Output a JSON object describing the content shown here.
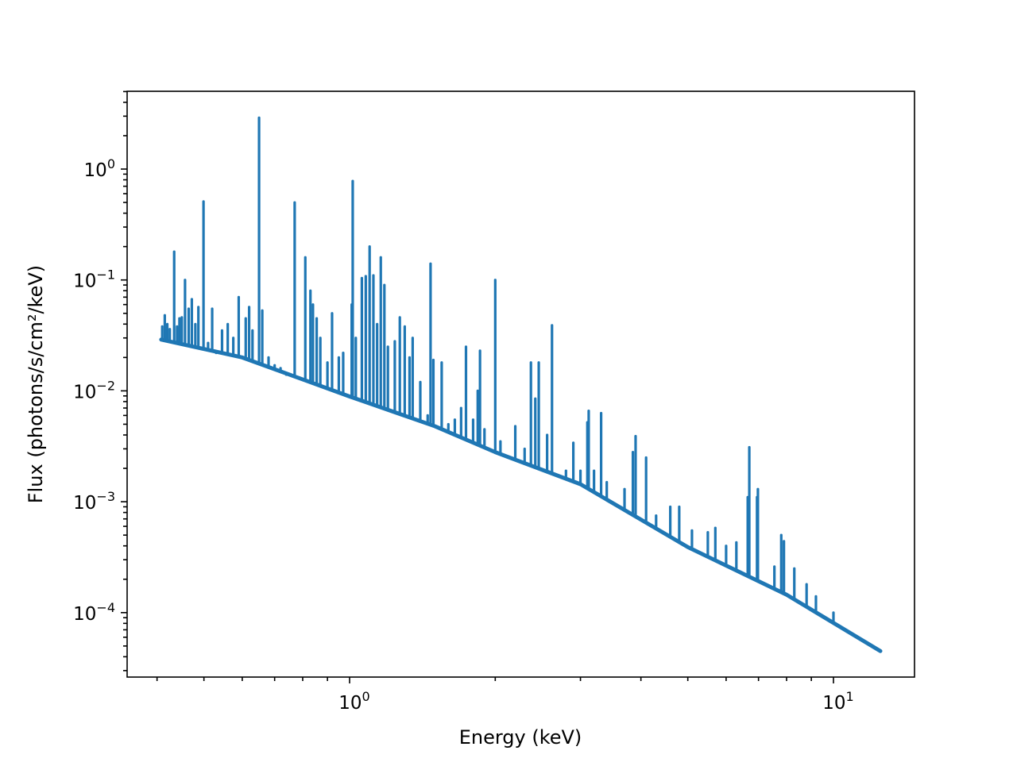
{
  "chart_data": {
    "type": "line",
    "title": "",
    "xlabel": "Energy (keV)",
    "ylabel": "Flux (photons/s/cm²/keV)",
    "xscale": "log",
    "yscale": "log",
    "xlim": [
      0.347,
      14.7
    ],
    "ylim": [
      2.6e-05,
      5.0
    ],
    "grid": false,
    "color": "#1f77b4",
    "x_ticks": [
      {
        "value": 1,
        "base": "10",
        "exp": "0"
      },
      {
        "value": 10,
        "base": "10",
        "exp": "1"
      }
    ],
    "y_ticks": [
      {
        "value": 1,
        "base": "10",
        "exp": "0"
      },
      {
        "value": 0.1,
        "base": "10",
        "exp": "−1"
      },
      {
        "value": 0.01,
        "base": "10",
        "exp": "−2"
      },
      {
        "value": 0.001,
        "base": "10",
        "exp": "−3"
      },
      {
        "value": 0.0001,
        "base": "10",
        "exp": "−4"
      }
    ],
    "continuum": [
      [
        0.408,
        0.029
      ],
      [
        0.6,
        0.02
      ],
      [
        1.0,
        0.0089
      ],
      [
        1.5,
        0.0048
      ],
      [
        2.0,
        0.0028
      ],
      [
        3.0,
        0.00144
      ],
      [
        5.0,
        0.00039
      ],
      [
        8.0,
        0.000145
      ],
      [
        12.5,
        4.5e-05
      ]
    ],
    "lines": [
      [
        0.41,
        0.038
      ],
      [
        0.415,
        0.048
      ],
      [
        0.42,
        0.04
      ],
      [
        0.425,
        0.036
      ],
      [
        0.434,
        0.18
      ],
      [
        0.44,
        0.038
      ],
      [
        0.445,
        0.045
      ],
      [
        0.45,
        0.046
      ],
      [
        0.457,
        0.1
      ],
      [
        0.465,
        0.055
      ],
      [
        0.472,
        0.067
      ],
      [
        0.48,
        0.04
      ],
      [
        0.487,
        0.057
      ],
      [
        0.499,
        0.51
      ],
      [
        0.51,
        0.027
      ],
      [
        0.52,
        0.055
      ],
      [
        0.53,
        0.022
      ],
      [
        0.545,
        0.035
      ],
      [
        0.56,
        0.04
      ],
      [
        0.575,
        0.03
      ],
      [
        0.59,
        0.07
      ],
      [
        0.61,
        0.045
      ],
      [
        0.62,
        0.057
      ],
      [
        0.63,
        0.035
      ],
      [
        0.65,
        2.9
      ],
      [
        0.66,
        0.053
      ],
      [
        0.68,
        0.02
      ],
      [
        0.7,
        0.017
      ],
      [
        0.72,
        0.016
      ],
      [
        0.74,
        0.014
      ],
      [
        0.77,
        0.5
      ],
      [
        0.79,
        0.013
      ],
      [
        0.81,
        0.16
      ],
      [
        0.83,
        0.08
      ],
      [
        0.84,
        0.06
      ],
      [
        0.855,
        0.045
      ],
      [
        0.87,
        0.03
      ],
      [
        0.9,
        0.018
      ],
      [
        0.92,
        0.05
      ],
      [
        0.95,
        0.02
      ],
      [
        0.97,
        0.022
      ],
      [
        1.01,
        0.06
      ],
      [
        1.015,
        0.78
      ],
      [
        1.03,
        0.03
      ],
      [
        1.06,
        0.104
      ],
      [
        1.08,
        0.108
      ],
      [
        1.1,
        0.2
      ],
      [
        1.12,
        0.11
      ],
      [
        1.14,
        0.04
      ],
      [
        1.16,
        0.16
      ],
      [
        1.18,
        0.09
      ],
      [
        1.2,
        0.025
      ],
      [
        1.24,
        0.028
      ],
      [
        1.27,
        0.046
      ],
      [
        1.3,
        0.038
      ],
      [
        1.33,
        0.02
      ],
      [
        1.35,
        0.03
      ],
      [
        1.4,
        0.012
      ],
      [
        1.45,
        0.006
      ],
      [
        1.47,
        0.14
      ],
      [
        1.49,
        0.019
      ],
      [
        1.55,
        0.018
      ],
      [
        1.6,
        0.005
      ],
      [
        1.65,
        0.0055
      ],
      [
        1.7,
        0.007
      ],
      [
        1.74,
        0.025
      ],
      [
        1.8,
        0.0055
      ],
      [
        1.84,
        0.01
      ],
      [
        1.86,
        0.023
      ],
      [
        1.9,
        0.0045
      ],
      [
        2.0,
        0.1
      ],
      [
        2.05,
        0.0035
      ],
      [
        2.2,
        0.0048
      ],
      [
        2.3,
        0.003
      ],
      [
        2.37,
        0.018
      ],
      [
        2.42,
        0.0085
      ],
      [
        2.46,
        0.018
      ],
      [
        2.56,
        0.004
      ],
      [
        2.62,
        0.039
      ],
      [
        2.8,
        0.0019
      ],
      [
        2.9,
        0.0034
      ],
      [
        3.0,
        0.0019
      ],
      [
        3.1,
        0.0052
      ],
      [
        3.12,
        0.0066
      ],
      [
        3.2,
        0.0019
      ],
      [
        3.31,
        0.0063
      ],
      [
        3.4,
        0.0015
      ],
      [
        3.7,
        0.0013
      ],
      [
        3.85,
        0.0028
      ],
      [
        3.9,
        0.0039
      ],
      [
        4.1,
        0.0025
      ],
      [
        4.3,
        0.00075
      ],
      [
        4.6,
        0.0009
      ],
      [
        4.8,
        0.0009
      ],
      [
        5.1,
        0.00055
      ],
      [
        5.5,
        0.00053
      ],
      [
        5.7,
        0.00058
      ],
      [
        6.0,
        0.0004
      ],
      [
        6.3,
        0.00043
      ],
      [
        6.65,
        0.0011
      ],
      [
        6.7,
        0.0031
      ],
      [
        6.95,
        0.0011
      ],
      [
        6.98,
        0.0013
      ],
      [
        7.55,
        0.00026
      ],
      [
        7.8,
        0.0005
      ],
      [
        7.9,
        0.00044
      ],
      [
        8.3,
        0.00025
      ],
      [
        8.8,
        0.00018
      ],
      [
        9.2,
        0.00014
      ],
      [
        10.0,
        0.0001
      ]
    ]
  }
}
